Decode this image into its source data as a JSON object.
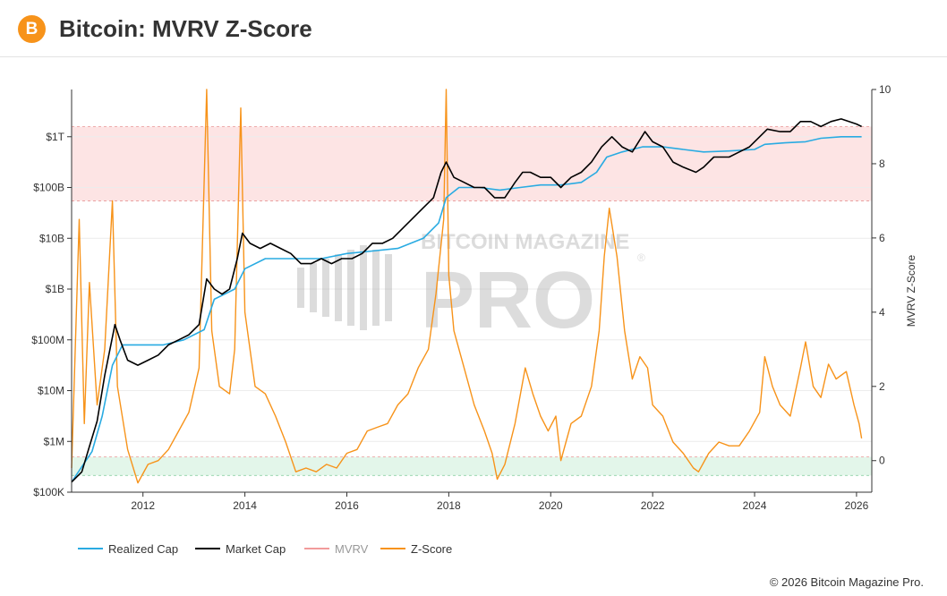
{
  "header": {
    "title": "Bitcoin: MVRV Z-Score",
    "logo_symbol": "B",
    "logo_icon": "bitcoin-icon"
  },
  "watermark": {
    "line1": "BITCOIN MAGAZINE",
    "line2": "PRO",
    "mark": "®"
  },
  "legend": {
    "items": [
      {
        "label": "Realized Cap",
        "color": "#29abe2"
      },
      {
        "label": "Market Cap",
        "color": "#000000"
      },
      {
        "label": "MVRV",
        "color": "#f29b9b",
        "muted": true
      },
      {
        "label": "Z-Score",
        "color": "#f7931a"
      }
    ]
  },
  "footer": {
    "copyright": "© 2026 Bitcoin Magazine Pro."
  },
  "chart_data": {
    "type": "line",
    "title": "Bitcoin: MVRV Z-Score",
    "x_range": [
      2010.6,
      2026.3
    ],
    "x_ticks": [
      2012,
      2014,
      2016,
      2018,
      2020,
      2022,
      2024,
      2026
    ],
    "left_axis": {
      "scale": "log",
      "unit": "USD",
      "range_log10": [
        5,
        12.93
      ],
      "ticks": [
        {
          "label": "$100K",
          "log10": 5
        },
        {
          "label": "$1M",
          "log10": 6
        },
        {
          "label": "$10M",
          "log10": 7
        },
        {
          "label": "$100M",
          "log10": 8
        },
        {
          "label": "$1B",
          "log10": 9
        },
        {
          "label": "$10B",
          "log10": 10
        },
        {
          "label": "$100B",
          "log10": 11
        },
        {
          "label": "$1T",
          "log10": 12
        }
      ]
    },
    "right_axis": {
      "label": "MVRV Z-Score",
      "range": [
        -0.85,
        10
      ],
      "ticks": [
        0,
        2,
        4,
        6,
        8,
        10
      ]
    },
    "zones": [
      {
        "name": "overvalued",
        "from": 7,
        "to": 9,
        "color": "#fde4e4"
      },
      {
        "name": "undervalued",
        "from": -0.4,
        "to": 0.1,
        "color": "#e3f6ea"
      }
    ],
    "series": [
      {
        "name": "Market Cap",
        "axis": "left",
        "color": "#000000",
        "points": [
          [
            2010.6,
            5.2
          ],
          [
            2010.8,
            5.4
          ],
          [
            2010.95,
            5.9
          ],
          [
            2011.1,
            6.4
          ],
          [
            2011.25,
            7.3
          ],
          [
            2011.45,
            8.3
          ],
          [
            2011.55,
            8.0
          ],
          [
            2011.7,
            7.6
          ],
          [
            2011.9,
            7.5
          ],
          [
            2012.1,
            7.6
          ],
          [
            2012.3,
            7.7
          ],
          [
            2012.5,
            7.9
          ],
          [
            2012.7,
            8.0
          ],
          [
            2012.9,
            8.1
          ],
          [
            2013.1,
            8.3
          ],
          [
            2013.25,
            9.2
          ],
          [
            2013.4,
            9.0
          ],
          [
            2013.55,
            8.9
          ],
          [
            2013.7,
            9.0
          ],
          [
            2013.85,
            9.6
          ],
          [
            2013.95,
            10.1
          ],
          [
            2014.1,
            9.9
          ],
          [
            2014.3,
            9.8
          ],
          [
            2014.5,
            9.9
          ],
          [
            2014.7,
            9.8
          ],
          [
            2014.9,
            9.7
          ],
          [
            2015.1,
            9.5
          ],
          [
            2015.3,
            9.5
          ],
          [
            2015.5,
            9.6
          ],
          [
            2015.7,
            9.5
          ],
          [
            2015.9,
            9.6
          ],
          [
            2016.1,
            9.6
          ],
          [
            2016.3,
            9.7
          ],
          [
            2016.5,
            9.9
          ],
          [
            2016.7,
            9.9
          ],
          [
            2016.9,
            10.0
          ],
          [
            2017.1,
            10.2
          ],
          [
            2017.3,
            10.4
          ],
          [
            2017.5,
            10.6
          ],
          [
            2017.7,
            10.8
          ],
          [
            2017.85,
            11.3
          ],
          [
            2017.95,
            11.5
          ],
          [
            2018.1,
            11.2
          ],
          [
            2018.3,
            11.1
          ],
          [
            2018.5,
            11.0
          ],
          [
            2018.7,
            11.0
          ],
          [
            2018.9,
            10.8
          ],
          [
            2019.1,
            10.8
          ],
          [
            2019.3,
            11.1
          ],
          [
            2019.45,
            11.3
          ],
          [
            2019.6,
            11.3
          ],
          [
            2019.8,
            11.2
          ],
          [
            2020.0,
            11.2
          ],
          [
            2020.2,
            11.0
          ],
          [
            2020.4,
            11.2
          ],
          [
            2020.6,
            11.3
          ],
          [
            2020.8,
            11.5
          ],
          [
            2021.0,
            11.8
          ],
          [
            2021.2,
            12.0
          ],
          [
            2021.4,
            11.8
          ],
          [
            2021.6,
            11.7
          ],
          [
            2021.85,
            12.1
          ],
          [
            2022.0,
            11.9
          ],
          [
            2022.2,
            11.8
          ],
          [
            2022.4,
            11.5
          ],
          [
            2022.6,
            11.4
          ],
          [
            2022.85,
            11.3
          ],
          [
            2023.0,
            11.4
          ],
          [
            2023.2,
            11.6
          ],
          [
            2023.5,
            11.6
          ],
          [
            2023.7,
            11.7
          ],
          [
            2023.9,
            11.8
          ],
          [
            2024.1,
            12.0
          ],
          [
            2024.25,
            12.15
          ],
          [
            2024.5,
            12.1
          ],
          [
            2024.7,
            12.1
          ],
          [
            2024.9,
            12.3
          ],
          [
            2025.1,
            12.3
          ],
          [
            2025.3,
            12.2
          ],
          [
            2025.5,
            12.3
          ],
          [
            2025.7,
            12.35
          ],
          [
            2025.85,
            12.3
          ],
          [
            2026.0,
            12.25
          ],
          [
            2026.1,
            12.2
          ]
        ]
      },
      {
        "name": "Realized Cap",
        "axis": "left",
        "color": "#29abe2",
        "points": [
          [
            2010.6,
            5.2
          ],
          [
            2010.8,
            5.5
          ],
          [
            2011.0,
            5.8
          ],
          [
            2011.2,
            6.5
          ],
          [
            2011.4,
            7.5
          ],
          [
            2011.6,
            7.9
          ],
          [
            2011.8,
            7.9
          ],
          [
            2012.0,
            7.9
          ],
          [
            2012.4,
            7.9
          ],
          [
            2012.8,
            8.0
          ],
          [
            2013.2,
            8.2
          ],
          [
            2013.4,
            8.8
          ],
          [
            2013.8,
            9.0
          ],
          [
            2014.0,
            9.4
          ],
          [
            2014.4,
            9.6
          ],
          [
            2015.0,
            9.6
          ],
          [
            2015.5,
            9.6
          ],
          [
            2016.0,
            9.7
          ],
          [
            2016.5,
            9.75
          ],
          [
            2017.0,
            9.8
          ],
          [
            2017.5,
            10.0
          ],
          [
            2017.8,
            10.3
          ],
          [
            2017.95,
            10.8
          ],
          [
            2018.2,
            11.0
          ],
          [
            2018.6,
            11.0
          ],
          [
            2019.0,
            10.95
          ],
          [
            2019.4,
            11.0
          ],
          [
            2019.8,
            11.05
          ],
          [
            2020.2,
            11.05
          ],
          [
            2020.6,
            11.1
          ],
          [
            2020.9,
            11.3
          ],
          [
            2021.1,
            11.6
          ],
          [
            2021.4,
            11.7
          ],
          [
            2021.8,
            11.8
          ],
          [
            2022.2,
            11.8
          ],
          [
            2022.6,
            11.75
          ],
          [
            2023.0,
            11.7
          ],
          [
            2023.5,
            11.72
          ],
          [
            2024.0,
            11.75
          ],
          [
            2024.2,
            11.85
          ],
          [
            2024.6,
            11.88
          ],
          [
            2025.0,
            11.9
          ],
          [
            2025.3,
            11.97
          ],
          [
            2025.7,
            12.0
          ],
          [
            2026.1,
            12.0
          ]
        ]
      },
      {
        "name": "Z-Score",
        "axis": "right",
        "color": "#f7931a",
        "points": [
          [
            2010.6,
            -0.2
          ],
          [
            2010.75,
            6.5
          ],
          [
            2010.85,
            1.0
          ],
          [
            2010.95,
            4.8
          ],
          [
            2011.1,
            1.5
          ],
          [
            2011.25,
            3.0
          ],
          [
            2011.4,
            7.0
          ],
          [
            2011.5,
            2.0
          ],
          [
            2011.7,
            0.3
          ],
          [
            2011.9,
            -0.6
          ],
          [
            2012.1,
            -0.1
          ],
          [
            2012.3,
            0.0
          ],
          [
            2012.5,
            0.3
          ],
          [
            2012.7,
            0.8
          ],
          [
            2012.9,
            1.3
          ],
          [
            2013.1,
            2.5
          ],
          [
            2013.25,
            10.0
          ],
          [
            2013.35,
            3.5
          ],
          [
            2013.5,
            2.0
          ],
          [
            2013.7,
            1.8
          ],
          [
            2013.8,
            3.0
          ],
          [
            2013.92,
            9.5
          ],
          [
            2014.0,
            4.0
          ],
          [
            2014.2,
            2.0
          ],
          [
            2014.4,
            1.8
          ],
          [
            2014.6,
            1.2
          ],
          [
            2014.8,
            0.5
          ],
          [
            2015.0,
            -0.3
          ],
          [
            2015.2,
            -0.2
          ],
          [
            2015.4,
            -0.3
          ],
          [
            2015.6,
            -0.1
          ],
          [
            2015.8,
            -0.2
          ],
          [
            2016.0,
            0.2
          ],
          [
            2016.2,
            0.3
          ],
          [
            2016.4,
            0.8
          ],
          [
            2016.6,
            0.9
          ],
          [
            2016.8,
            1.0
          ],
          [
            2017.0,
            1.5
          ],
          [
            2017.2,
            1.8
          ],
          [
            2017.4,
            2.5
          ],
          [
            2017.6,
            3.0
          ],
          [
            2017.75,
            4.5
          ],
          [
            2017.9,
            6.5
          ],
          [
            2017.95,
            10.0
          ],
          [
            2018.0,
            5.0
          ],
          [
            2018.1,
            3.5
          ],
          [
            2018.3,
            2.5
          ],
          [
            2018.5,
            1.5
          ],
          [
            2018.7,
            0.8
          ],
          [
            2018.85,
            0.2
          ],
          [
            2018.95,
            -0.5
          ],
          [
            2019.1,
            -0.1
          ],
          [
            2019.3,
            1.0
          ],
          [
            2019.5,
            2.5
          ],
          [
            2019.65,
            1.8
          ],
          [
            2019.8,
            1.2
          ],
          [
            2019.95,
            0.8
          ],
          [
            2020.1,
            1.2
          ],
          [
            2020.2,
            0.0
          ],
          [
            2020.4,
            1.0
          ],
          [
            2020.6,
            1.2
          ],
          [
            2020.8,
            2.0
          ],
          [
            2020.95,
            3.5
          ],
          [
            2021.05,
            5.5
          ],
          [
            2021.15,
            6.8
          ],
          [
            2021.3,
            5.5
          ],
          [
            2021.45,
            3.5
          ],
          [
            2021.6,
            2.2
          ],
          [
            2021.75,
            2.8
          ],
          [
            2021.9,
            2.5
          ],
          [
            2022.0,
            1.5
          ],
          [
            2022.2,
            1.2
          ],
          [
            2022.4,
            0.5
          ],
          [
            2022.6,
            0.2
          ],
          [
            2022.8,
            -0.2
          ],
          [
            2022.9,
            -0.3
          ],
          [
            2023.1,
            0.2
          ],
          [
            2023.3,
            0.5
          ],
          [
            2023.5,
            0.4
          ],
          [
            2023.7,
            0.4
          ],
          [
            2023.9,
            0.8
          ],
          [
            2024.1,
            1.3
          ],
          [
            2024.2,
            2.8
          ],
          [
            2024.35,
            2.0
          ],
          [
            2024.5,
            1.5
          ],
          [
            2024.7,
            1.2
          ],
          [
            2024.9,
            2.5
          ],
          [
            2025.0,
            3.2
          ],
          [
            2025.15,
            2.0
          ],
          [
            2025.3,
            1.7
          ],
          [
            2025.45,
            2.6
          ],
          [
            2025.6,
            2.2
          ],
          [
            2025.8,
            2.4
          ],
          [
            2025.95,
            1.5
          ],
          [
            2026.05,
            1.0
          ],
          [
            2026.1,
            0.6
          ]
        ]
      }
    ]
  }
}
